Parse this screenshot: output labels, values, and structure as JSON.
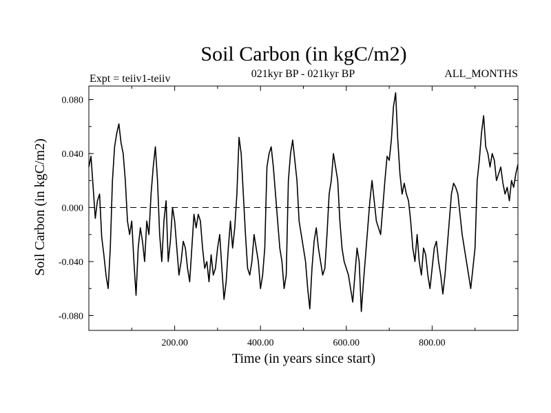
{
  "chart_data": {
    "type": "line",
    "title": "Soil Carbon (in kgC/m2)",
    "subtitle_left": "Expt = teiiv1-teiiv",
    "subtitle_center": "021kyr BP - 021kyr BP",
    "subtitle_right": "ALL_MONTHS",
    "xlabel": "Time (in years since start)",
    "ylabel": "Soil Carbon (in kgC/m2)",
    "xlim": [
      0,
      1000
    ],
    "ylim": [
      -0.091,
      0.09
    ],
    "xticks": [
      200,
      400,
      600,
      800
    ],
    "xtick_labels": [
      "200.00",
      "400.00",
      "600.00",
      "800.00"
    ],
    "yticks": [
      -0.08,
      -0.04,
      0.0,
      0.04,
      0.08
    ],
    "ytick_labels": [
      "-0.080",
      "-0.040",
      "0.000",
      "0.040",
      "0.080"
    ],
    "zero_line": "dashed",
    "grid": false,
    "series": [
      {
        "color": "#000000",
        "points": [
          [
            0,
            0.03
          ],
          [
            5,
            0.038
          ],
          [
            10,
            0.015
          ],
          [
            15,
            -0.008
          ],
          [
            20,
            0.005
          ],
          [
            25,
            0.01
          ],
          [
            30,
            -0.022
          ],
          [
            35,
            -0.035
          ],
          [
            40,
            -0.05
          ],
          [
            45,
            -0.06
          ],
          [
            50,
            -0.03
          ],
          [
            55,
            0.02
          ],
          [
            60,
            0.045
          ],
          [
            65,
            0.055
          ],
          [
            70,
            0.062
          ],
          [
            75,
            0.048
          ],
          [
            80,
            0.04
          ],
          [
            85,
            0.02
          ],
          [
            90,
            -0.01
          ],
          [
            95,
            -0.02
          ],
          [
            100,
            -0.01
          ],
          [
            105,
            -0.04
          ],
          [
            110,
            -0.065
          ],
          [
            115,
            -0.03
          ],
          [
            120,
            -0.015
          ],
          [
            125,
            -0.025
          ],
          [
            130,
            -0.04
          ],
          [
            135,
            -0.01
          ],
          [
            140,
            -0.02
          ],
          [
            145,
            0.01
          ],
          [
            150,
            0.03
          ],
          [
            155,
            0.045
          ],
          [
            160,
            0.02
          ],
          [
            165,
            -0.02
          ],
          [
            170,
            -0.04
          ],
          [
            175,
            -0.01
          ],
          [
            180,
            0.005
          ],
          [
            185,
            -0.04
          ],
          [
            190,
            -0.025
          ],
          [
            195,
            0.0
          ],
          [
            200,
            -0.01
          ],
          [
            205,
            -0.03
          ],
          [
            210,
            -0.05
          ],
          [
            215,
            -0.04
          ],
          [
            220,
            -0.025
          ],
          [
            225,
            -0.03
          ],
          [
            230,
            -0.045
          ],
          [
            235,
            -0.055
          ],
          [
            240,
            -0.03
          ],
          [
            245,
            -0.005
          ],
          [
            250,
            -0.015
          ],
          [
            255,
            -0.005
          ],
          [
            260,
            -0.01
          ],
          [
            265,
            -0.03
          ],
          [
            270,
            -0.045
          ],
          [
            275,
            -0.04
          ],
          [
            280,
            -0.055
          ],
          [
            285,
            -0.035
          ],
          [
            290,
            -0.05
          ],
          [
            295,
            -0.045
          ],
          [
            300,
            -0.03
          ],
          [
            305,
            -0.02
          ],
          [
            310,
            -0.045
          ],
          [
            315,
            -0.068
          ],
          [
            320,
            -0.055
          ],
          [
            325,
            -0.03
          ],
          [
            330,
            -0.01
          ],
          [
            335,
            -0.03
          ],
          [
            340,
            -0.015
          ],
          [
            345,
            0.01
          ],
          [
            350,
            0.052
          ],
          [
            355,
            0.04
          ],
          [
            360,
            0.01
          ],
          [
            365,
            -0.02
          ],
          [
            370,
            -0.045
          ],
          [
            375,
            -0.05
          ],
          [
            380,
            -0.04
          ],
          [
            385,
            -0.02
          ],
          [
            390,
            -0.03
          ],
          [
            395,
            -0.04
          ],
          [
            400,
            -0.06
          ],
          [
            405,
            -0.05
          ],
          [
            410,
            -0.03
          ],
          [
            415,
            0.03
          ],
          [
            420,
            0.04
          ],
          [
            425,
            0.045
          ],
          [
            430,
            0.03
          ],
          [
            435,
            0.01
          ],
          [
            440,
            -0.01
          ],
          [
            445,
            -0.03
          ],
          [
            450,
            -0.04
          ],
          [
            455,
            -0.06
          ],
          [
            460,
            -0.05
          ],
          [
            465,
            0.02
          ],
          [
            470,
            0.04
          ],
          [
            475,
            0.05
          ],
          [
            480,
            0.035
          ],
          [
            485,
            0.02
          ],
          [
            490,
            -0.01
          ],
          [
            495,
            -0.02
          ],
          [
            500,
            -0.03
          ],
          [
            505,
            -0.04
          ],
          [
            510,
            -0.06
          ],
          [
            515,
            -0.075
          ],
          [
            520,
            -0.045
          ],
          [
            525,
            -0.025
          ],
          [
            530,
            -0.015
          ],
          [
            535,
            -0.03
          ],
          [
            540,
            -0.04
          ],
          [
            545,
            -0.05
          ],
          [
            550,
            -0.045
          ],
          [
            555,
            -0.02
          ],
          [
            560,
            0.01
          ],
          [
            565,
            0.02
          ],
          [
            570,
            0.04
          ],
          [
            575,
            0.03
          ],
          [
            580,
            0.02
          ],
          [
            585,
            -0.01
          ],
          [
            590,
            -0.03
          ],
          [
            595,
            -0.04
          ],
          [
            600,
            -0.045
          ],
          [
            605,
            -0.05
          ],
          [
            610,
            -0.06
          ],
          [
            615,
            -0.07
          ],
          [
            620,
            -0.05
          ],
          [
            625,
            -0.03
          ],
          [
            630,
            -0.04
          ],
          [
            635,
            -0.077
          ],
          [
            640,
            -0.055
          ],
          [
            645,
            -0.035
          ],
          [
            650,
            -0.015
          ],
          [
            655,
            0.005
          ],
          [
            660,
            0.02
          ],
          [
            665,
            0.005
          ],
          [
            670,
            -0.01
          ],
          [
            675,
            -0.015
          ],
          [
            680,
            -0.02
          ],
          [
            685,
            0.0
          ],
          [
            690,
            0.02
          ],
          [
            695,
            0.038
          ],
          [
            700,
            0.035
          ],
          [
            705,
            0.05
          ],
          [
            710,
            0.075
          ],
          [
            715,
            0.085
          ],
          [
            720,
            0.05
          ],
          [
            725,
            0.025
          ],
          [
            730,
            0.01
          ],
          [
            735,
            0.018
          ],
          [
            740,
            0.01
          ],
          [
            745,
            0.005
          ],
          [
            750,
            -0.01
          ],
          [
            755,
            -0.03
          ],
          [
            760,
            -0.04
          ],
          [
            765,
            -0.02
          ],
          [
            770,
            -0.04
          ],
          [
            775,
            -0.05
          ],
          [
            780,
            -0.03
          ],
          [
            785,
            -0.035
          ],
          [
            790,
            -0.05
          ],
          [
            795,
            -0.06
          ],
          [
            800,
            -0.045
          ],
          [
            805,
            -0.03
          ],
          [
            810,
            -0.025
          ],
          [
            815,
            -0.04
          ],
          [
            820,
            -0.05
          ],
          [
            825,
            -0.064
          ],
          [
            830,
            -0.05
          ],
          [
            835,
            -0.03
          ],
          [
            840,
            -0.01
          ],
          [
            845,
            0.01
          ],
          [
            850,
            0.018
          ],
          [
            855,
            0.015
          ],
          [
            860,
            0.01
          ],
          [
            865,
            -0.005
          ],
          [
            870,
            -0.02
          ],
          [
            875,
            -0.03
          ],
          [
            880,
            -0.04
          ],
          [
            885,
            -0.05
          ],
          [
            890,
            -0.06
          ],
          [
            895,
            -0.045
          ],
          [
            900,
            -0.03
          ],
          [
            905,
            0.02
          ],
          [
            910,
            0.035
          ],
          [
            915,
            0.055
          ],
          [
            920,
            0.068
          ],
          [
            925,
            0.045
          ],
          [
            930,
            0.04
          ],
          [
            935,
            0.03
          ],
          [
            940,
            0.04
          ],
          [
            945,
            0.035
          ],
          [
            950,
            0.02
          ],
          [
            955,
            0.025
          ],
          [
            960,
            0.03
          ],
          [
            965,
            0.018
          ],
          [
            970,
            0.01
          ],
          [
            975,
            0.015
          ],
          [
            980,
            0.005
          ],
          [
            985,
            0.02
          ],
          [
            990,
            0.015
          ],
          [
            995,
            0.025
          ],
          [
            1000,
            0.032
          ]
        ]
      }
    ]
  }
}
